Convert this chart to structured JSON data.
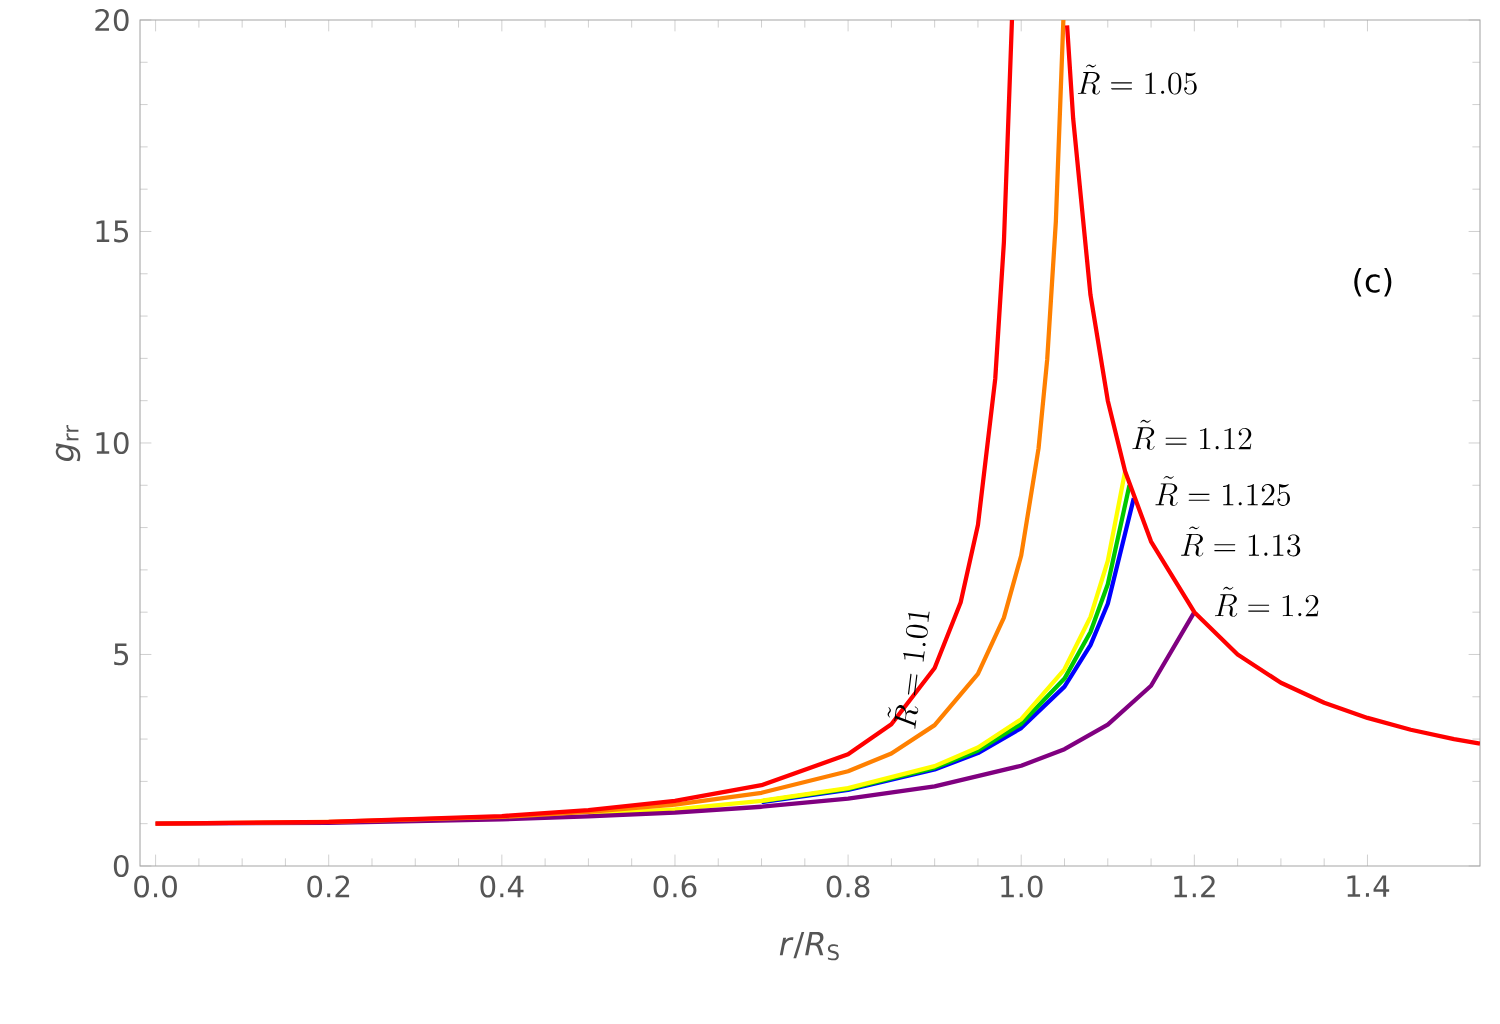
{
  "chart_data": {
    "type": "line",
    "xlabel": "*r*/*R*$_{S}$",
    "ylabel": "*g*$_{rr}$",
    "xlim": [
      -0.018,
      1.53
    ],
    "ylim": [
      0,
      20
    ],
    "xticks": [
      {
        "value": 0,
        "label": "0.0"
      },
      {
        "value": 0.2,
        "label": "0.2"
      },
      {
        "value": 0.4,
        "label": "0.4"
      },
      {
        "value": 0.6,
        "label": "0.6"
      },
      {
        "value": 0.8,
        "label": "0.8"
      },
      {
        "value": 1.0,
        "label": "1.0"
      },
      {
        "value": 1.2,
        "label": "1.2"
      },
      {
        "value": 1.4,
        "label": "1.4"
      }
    ],
    "yticks": [
      0,
      5,
      10,
      15,
      20
    ],
    "grid": false,
    "marker": "none",
    "line_style": "solid",
    "series": [
      {
        "color": "#0000ff",
        "x": [
          0.7,
          0.8,
          0.9,
          0.95,
          1.0,
          1.05,
          1.08,
          1.1,
          1.13
        ],
        "values": [
          1.51,
          1.8,
          2.28,
          2.67,
          3.26,
          4.24,
          5.22,
          6.2,
          8.69
        ]
      },
      {
        "color": "#00c800",
        "x": [
          0.7,
          0.8,
          0.9,
          0.95,
          1.0,
          1.05,
          1.08,
          1.1,
          1.125
        ],
        "values": [
          1.53,
          1.82,
          2.32,
          2.73,
          3.36,
          4.43,
          5.53,
          6.66,
          9.0
        ]
      },
      {
        "color": "#ffff00",
        "x": [
          0.5,
          0.6,
          0.7,
          0.8,
          0.9,
          0.95,
          1.0,
          1.05,
          1.08,
          1.1,
          1.12
        ],
        "values": [
          1.22,
          1.34,
          1.54,
          1.84,
          2.36,
          2.8,
          3.47,
          4.65,
          5.89,
          7.21,
          9.33
        ]
      },
      {
        "color": "#800080",
        "x": [
          0,
          0.2,
          0.4,
          0.5,
          0.6,
          0.7,
          0.8,
          0.9,
          1.0,
          1.05,
          1.1,
          1.15,
          1.2
        ],
        "values": [
          1,
          1.02,
          1.1,
          1.17,
          1.26,
          1.4,
          1.59,
          1.88,
          2.37,
          2.76,
          3.34,
          4.26,
          6.0
        ]
      },
      {
        "color": "#ff8000",
        "x": [
          0,
          0.2,
          0.4,
          0.5,
          0.6,
          0.7,
          0.8,
          0.85,
          0.9,
          0.95,
          0.98,
          1.0,
          1.02,
          1.03,
          1.04,
          1.0487
        ],
        "values": [
          1,
          1.04,
          1.16,
          1.28,
          1.45,
          1.73,
          2.24,
          2.66,
          3.33,
          4.54,
          5.87,
          7.34,
          9.87,
          11.97,
          15.23,
          20
        ]
      },
      {
        "color": "#ff0000",
        "x": [
          0,
          0.2,
          0.4,
          0.5,
          0.6,
          0.7,
          0.8,
          0.85,
          0.9,
          0.93,
          0.95,
          0.97,
          0.98,
          0.9893
        ],
        "values": [
          1,
          1.04,
          1.18,
          1.32,
          1.54,
          1.91,
          2.64,
          3.35,
          4.68,
          6.23,
          8.06,
          11.52,
          14.75,
          20
        ]
      },
      {
        "color": "#ff0000",
        "x": [
          1.053,
          1.06,
          1.08,
          1.1,
          1.12,
          1.15,
          1.2,
          1.25,
          1.3,
          1.35,
          1.4,
          1.45,
          1.5,
          1.53
        ],
        "values": [
          19.87,
          17.67,
          13.5,
          11.0,
          9.33,
          7.67,
          6.0,
          5.0,
          4.33,
          3.86,
          3.5,
          3.22,
          3.0,
          2.89
        ]
      }
    ],
    "annotations": [
      "(c)",
      {
        "text": "\\tilde{R}=1.01",
        "x": 0.9,
        "y": 4.68
      },
      {
        "text": "\\tilde{R}=1.05",
        "x": 1.06,
        "y": 18.6
      },
      {
        "text": "\\tilde{R}=1.12",
        "x": 1.123,
        "y": 10.2
      },
      {
        "text": "\\tilde{R}=1.125",
        "x": 1.125,
        "y": 9.0
      },
      {
        "text": "\\tilde{R}=1.13",
        "x": 1.13,
        "y": 8.69
      },
      {
        "text": "\\tilde{R}=1.2",
        "x": 1.2,
        "y": 6.0
      }
    ]
  }
}
